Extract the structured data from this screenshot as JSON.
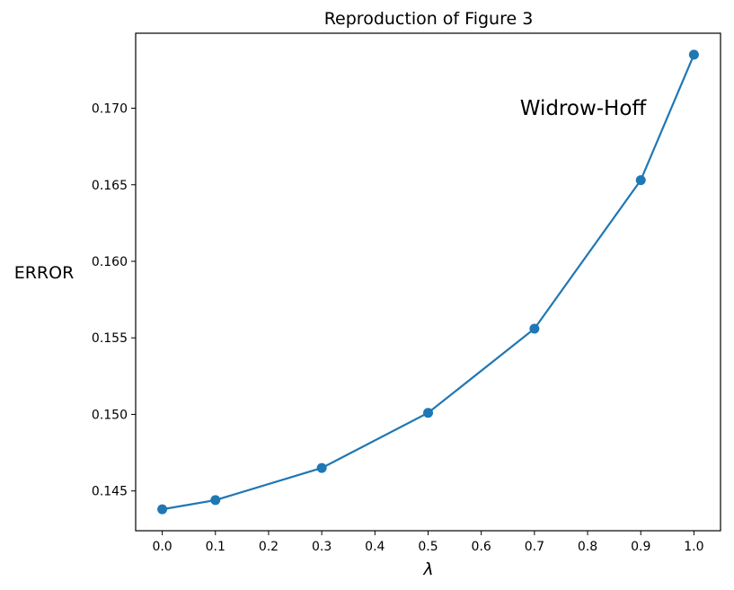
{
  "chart_data": {
    "type": "line",
    "title": "Reproduction of Figure 3",
    "xlabel": "λ",
    "ylabel": "ERROR",
    "x": [
      0.0,
      0.1,
      0.3,
      0.5,
      0.7,
      0.9,
      1.0
    ],
    "series": [
      {
        "values": [
          0.1438,
          0.1444,
          0.1465,
          0.1501,
          0.1556,
          0.1653,
          0.1735
        ]
      }
    ],
    "xlim": [
      -0.05,
      1.05
    ],
    "ylim": [
      0.1424,
      0.1749
    ],
    "xticks": [
      0.0,
      0.1,
      0.2,
      0.3,
      0.4,
      0.5,
      0.6,
      0.7,
      0.8,
      0.9,
      1.0
    ],
    "xtick_labels": [
      "0.0",
      "0.1",
      "0.2",
      "0.3",
      "0.4",
      "0.5",
      "0.6",
      "0.7",
      "0.8",
      "0.9",
      "1.0"
    ],
    "yticks": [
      0.145,
      0.15,
      0.155,
      0.16,
      0.165,
      0.17
    ],
    "ytick_labels": [
      "0.145",
      "0.150",
      "0.155",
      "0.160",
      "0.165",
      "0.170"
    ],
    "annotation": "Widrow-Hoff",
    "grid": false,
    "line_color": "#1f77b4"
  }
}
